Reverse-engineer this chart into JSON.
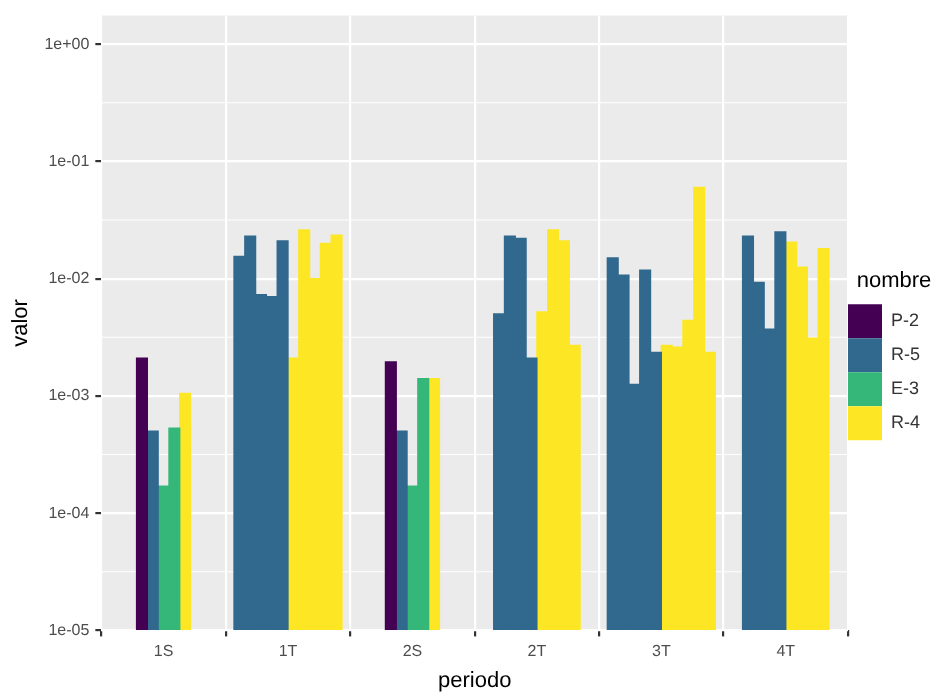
{
  "chart_data": {
    "type": "bar",
    "xlabel": "periodo",
    "ylabel": "valor",
    "legend_title": "nombre",
    "legend": "right",
    "log": "y",
    "grid": true,
    "categories": [
      "1S",
      "1T",
      "2S",
      "2T",
      "3T",
      "4T"
    ],
    "ylim": [
      1e-05,
      1.75
    ],
    "yticks": [
      {
        "value": 1e-05,
        "label": "1e-05"
      },
      {
        "value": 0.0001,
        "label": "1e-04"
      },
      {
        "value": 0.001,
        "label": "1e-03"
      },
      {
        "value": 0.01,
        "label": "1e-02"
      },
      {
        "value": 0.1,
        "label": "1e-01"
      },
      {
        "value": 1,
        "label": "1e+00"
      }
    ],
    "series": [
      {
        "name": "P-2",
        "color": "#440154",
        "values": [
          0.0021,
          null,
          0.00195,
          null,
          null,
          null
        ]
      },
      {
        "name": "R-5",
        "color": "#31688e",
        "values": [
          0.0005,
          0.0155,
          0.0005,
          0.005,
          0.015,
          0.023
        ]
      },
      {
        "color": "#31688e",
        "values": [
          null,
          0.023,
          null,
          0.023,
          0.0107,
          0.0093
        ]
      },
      {
        "color": "#31688e",
        "values": [
          null,
          0.0073,
          null,
          0.022,
          0.00125,
          0.0037
        ]
      },
      {
        "color": "#31688e",
        "values": [
          null,
          0.007,
          null,
          0.0021,
          0.0118,
          0.025
        ]
      },
      {
        "color": "#31688e",
        "values": [
          null,
          0.021,
          null,
          null,
          0.00235,
          null
        ]
      },
      {
        "name": "E-3",
        "color": "#35b779",
        "values": [
          0.00017,
          null,
          0.00017,
          null,
          null,
          null
        ]
      },
      {
        "color": "#35b779",
        "values": [
          0.00053,
          null,
          0.0014,
          null,
          null,
          null
        ]
      },
      {
        "name": "R-4",
        "color": "#fde725",
        "values": [
          0.00105,
          0.0021,
          0.0014,
          0.0052,
          0.0027,
          0.0205
        ]
      },
      {
        "color": "#fde725",
        "values": [
          null,
          0.026,
          null,
          0.026,
          0.0026,
          0.0125
        ]
      },
      {
        "color": "#fde725",
        "values": [
          null,
          0.01,
          null,
          0.021,
          0.0044,
          0.0031
        ]
      },
      {
        "color": "#fde725",
        "values": [
          null,
          0.02,
          null,
          0.0027,
          0.06,
          0.018
        ]
      },
      {
        "color": "#fde725",
        "values": [
          null,
          0.0235,
          null,
          null,
          0.00235,
          null
        ]
      }
    ]
  }
}
